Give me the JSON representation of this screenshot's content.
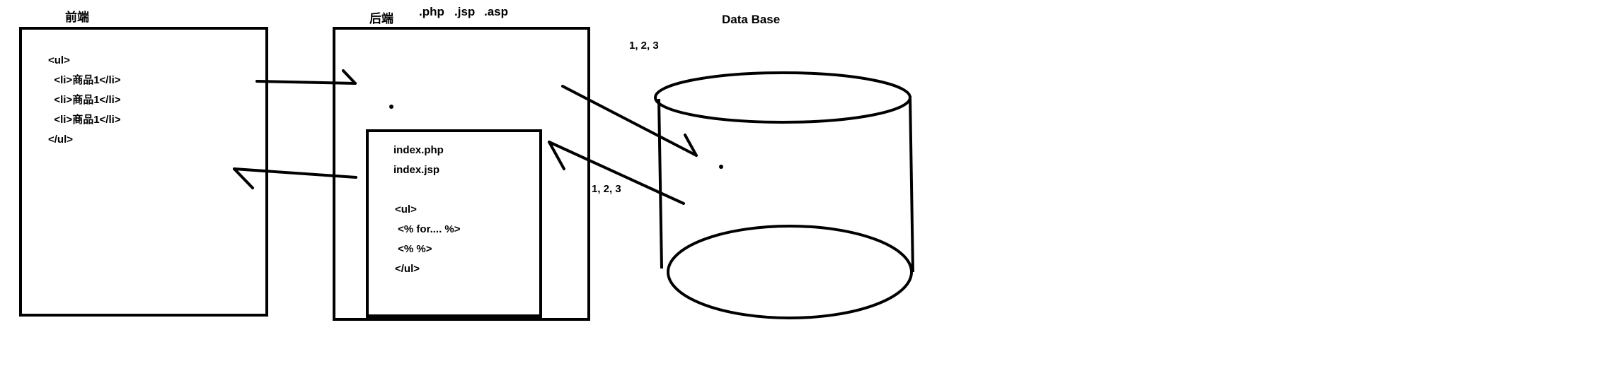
{
  "frontend": {
    "title": "前端",
    "code_lines": [
      "<ul>",
      "  <li>商品1</li>",
      "  <li>商品1</li>",
      "  <li>商品1</li>",
      "</ul>"
    ]
  },
  "backend": {
    "title": "后端",
    "extensions": [
      ".php",
      ".jsp",
      ".asp"
    ],
    "template": {
      "files": [
        "index.php",
        "index.jsp"
      ],
      "code_lines": [
        "<ul>",
        " <% for.... %>",
        " <% %>",
        "</ul>"
      ]
    }
  },
  "database": {
    "title": "Data Base",
    "data_top": "1, 2, 3",
    "data_return": "1, 2, 3"
  }
}
